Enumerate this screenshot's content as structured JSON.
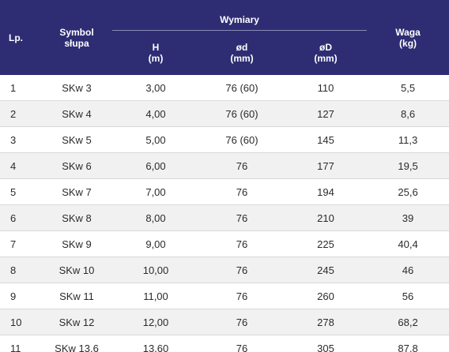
{
  "headers": {
    "lp": "Lp.",
    "symbol_line1": "Symbol",
    "symbol_line2": "słupa",
    "group": "Wymiary",
    "h_name": "H",
    "h_unit": "(m)",
    "d_name": "ød",
    "d_unit": "(mm)",
    "D_name": "øD",
    "D_unit": "(mm)",
    "waga_name": "Waga",
    "waga_unit": "(kg)"
  },
  "rows": [
    [
      "1",
      "SKw 3",
      "3,00",
      "76 (60)",
      "110",
      "5,5"
    ],
    [
      "2",
      "SKw 4",
      "4,00",
      "76 (60)",
      "127",
      "8,6"
    ],
    [
      "3",
      "SKw 5",
      "5,00",
      "76 (60)",
      "145",
      "11,3"
    ],
    [
      "4",
      "SKw 6",
      "6,00",
      "76",
      "177",
      "19,5"
    ],
    [
      "5",
      "SKw 7",
      "7,00",
      "76",
      "194",
      "25,6"
    ],
    [
      "6",
      "SKw 8",
      "8,00",
      "76",
      "210",
      "39"
    ],
    [
      "7",
      "SKw 9",
      "9,00",
      "76",
      "225",
      "40,4"
    ],
    [
      "8",
      "SKw 10",
      "10,00",
      "76",
      "245",
      "46"
    ],
    [
      "9",
      "SKw 11",
      "11,00",
      "76",
      "260",
      "56"
    ],
    [
      "10",
      "SKw 12",
      "12,00",
      "76",
      "278",
      "68,2"
    ],
    [
      "11",
      "SKw 13,6",
      "13,60",
      "76",
      "305",
      "87,8"
    ]
  ],
  "colors": {
    "header_bg": "#2e2d73",
    "header_text": "#ffffff",
    "row_alt_bg": "#f1f1f1"
  }
}
